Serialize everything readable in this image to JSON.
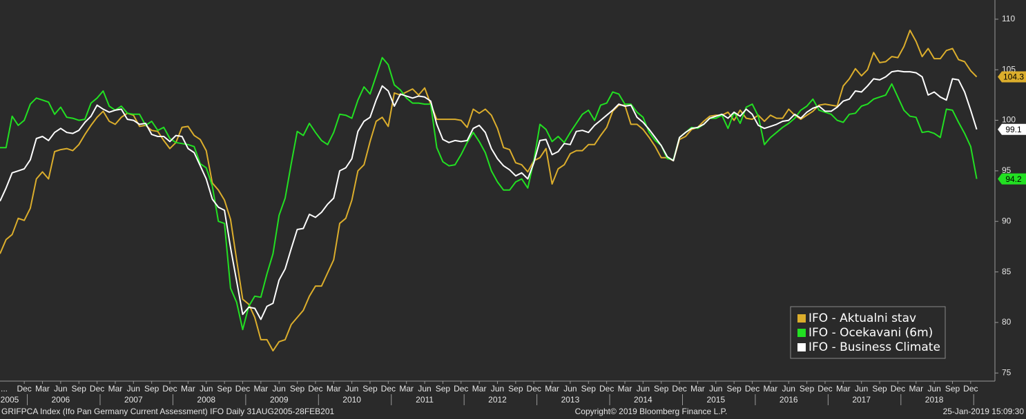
{
  "chart_data": {
    "type": "line",
    "x": [
      "2005-08",
      "2005-09",
      "2005-10",
      "2005-11",
      "2005-12",
      "2006-01",
      "2006-02",
      "2006-03",
      "2006-04",
      "2006-05",
      "2006-06",
      "2006-07",
      "2006-08",
      "2006-09",
      "2006-10",
      "2006-11",
      "2006-12",
      "2007-01",
      "2007-02",
      "2007-03",
      "2007-04",
      "2007-05",
      "2007-06",
      "2007-07",
      "2007-08",
      "2007-09",
      "2007-10",
      "2007-11",
      "2007-12",
      "2008-01",
      "2008-02",
      "2008-03",
      "2008-04",
      "2008-05",
      "2008-06",
      "2008-07",
      "2008-08",
      "2008-09",
      "2008-10",
      "2008-11",
      "2008-12",
      "2009-01",
      "2009-02",
      "2009-03",
      "2009-04",
      "2009-05",
      "2009-06",
      "2009-07",
      "2009-08",
      "2009-09",
      "2009-10",
      "2009-11",
      "2009-12",
      "2010-01",
      "2010-02",
      "2010-03",
      "2010-04",
      "2010-05",
      "2010-06",
      "2010-07",
      "2010-08",
      "2010-09",
      "2010-10",
      "2010-11",
      "2010-12",
      "2011-01",
      "2011-02",
      "2011-03",
      "2011-04",
      "2011-05",
      "2011-06",
      "2011-07",
      "2011-08",
      "2011-09",
      "2011-10",
      "2011-11",
      "2011-12",
      "2012-01",
      "2012-02",
      "2012-03",
      "2012-04",
      "2012-05",
      "2012-06",
      "2012-07",
      "2012-08",
      "2012-09",
      "2012-10",
      "2012-11",
      "2012-12",
      "2013-01",
      "2013-02",
      "2013-03",
      "2013-04",
      "2013-05",
      "2013-06",
      "2013-07",
      "2013-08",
      "2013-09",
      "2013-10",
      "2013-11",
      "2013-12",
      "2014-01",
      "2014-02",
      "2014-03",
      "2014-04",
      "2014-05",
      "2014-06",
      "2014-07",
      "2014-08",
      "2014-09",
      "2014-10",
      "2014-11",
      "2014-12",
      "2015-01",
      "2015-02",
      "2015-03",
      "2015-04",
      "2015-05",
      "2015-06",
      "2015-07",
      "2015-08",
      "2015-09",
      "2015-10",
      "2015-11",
      "2015-12",
      "2016-01",
      "2016-02",
      "2016-03",
      "2016-04",
      "2016-05",
      "2016-06",
      "2016-07",
      "2016-08",
      "2016-09",
      "2016-10",
      "2016-11",
      "2016-12",
      "2017-01",
      "2017-02",
      "2017-03",
      "2017-04",
      "2017-05",
      "2017-06",
      "2017-07",
      "2017-08",
      "2017-09",
      "2017-10",
      "2017-11",
      "2017-12",
      "2018-01",
      "2018-02",
      "2018-03",
      "2018-04",
      "2018-05",
      "2018-06",
      "2018-07",
      "2018-08",
      "2018-09",
      "2018-10",
      "2018-11",
      "2018-12",
      "2019-01"
    ],
    "series": [
      {
        "name": "IFO - Aktualni stav",
        "color": "#dcae2c",
        "values": [
          86.8,
          88.2,
          88.7,
          90.3,
          90.1,
          91.3,
          94.2,
          94.9,
          94.2,
          96.9,
          97.1,
          97.2,
          97.0,
          97.6,
          98.6,
          99.5,
          100.3,
          100.9,
          99.9,
          99.6,
          100.3,
          100.7,
          100.5,
          99.4,
          99.5,
          99.0,
          98.9,
          98.0,
          97.2,
          97.8,
          99.3,
          99.4,
          98.5,
          98.1,
          97.0,
          93.8,
          93.1,
          92.1,
          90.2,
          86.2,
          82.3,
          81.8,
          80.5,
          78.3,
          78.3,
          77.2,
          78.1,
          78.3,
          79.8,
          80.5,
          81.2,
          82.6,
          83.6,
          83.6,
          84.9,
          86.2,
          89.8,
          90.3,
          92.1,
          95.0,
          95.6,
          97.9,
          99.9,
          100.3,
          99.4,
          102.7,
          102.5,
          102.8,
          103.1,
          102.5,
          103.2,
          101.6,
          100.1,
          100.1,
          100.1,
          100.1,
          100.0,
          99.3,
          101.1,
          100.7,
          101.1,
          100.5,
          99.2,
          97.3,
          97.1,
          95.8,
          95.6,
          94.9,
          96.0,
          96.3,
          97.2,
          93.7,
          95.2,
          95.6,
          96.7,
          97.0,
          97.0,
          97.6,
          97.6,
          98.5,
          99.3,
          100.9,
          101.5,
          101.5,
          99.6,
          99.6,
          99.1,
          98.3,
          97.4,
          96.3,
          96.3,
          96.0,
          98.1,
          98.4,
          99.1,
          99.3,
          99.9,
          100.4,
          100.5,
          100.5,
          100.8,
          100.0,
          101.0,
          100.2,
          100.1,
          100.5,
          99.9,
          100.5,
          100.2,
          100.2,
          101.1,
          100.5,
          100.1,
          100.5,
          100.9,
          101.5,
          101.6,
          101.5,
          101.4,
          103.4,
          104.1,
          105.1,
          104.4,
          105.0,
          106.7,
          105.7,
          105.8,
          106.3,
          106.2,
          107.3,
          108.9,
          107.8,
          106.3,
          107.1,
          106.1,
          106.1,
          106.9,
          107.1,
          106.0,
          105.8,
          104.9,
          104.3
        ]
      },
      {
        "name": "IFO - Ocekavani (6m)",
        "color": "#22e022",
        "values": [
          97.3,
          97.3,
          100.4,
          99.5,
          100.0,
          101.6,
          102.2,
          102.0,
          101.8,
          100.6,
          101.3,
          100.3,
          100.2,
          100.0,
          100.1,
          101.7,
          102.2,
          102.9,
          101.4,
          101.0,
          101.4,
          100.7,
          100.6,
          100.6,
          99.5,
          99.9,
          99.0,
          99.3,
          98.2,
          97.8,
          97.7,
          97.6,
          97.4,
          95.7,
          95.3,
          93.5,
          90.0,
          89.8,
          83.4,
          82.0,
          79.3,
          81.6,
          82.6,
          82.5,
          84.8,
          86.8,
          90.6,
          92.3,
          95.7,
          98.9,
          98.5,
          99.7,
          98.8,
          98.0,
          97.6,
          98.8,
          100.6,
          100.5,
          100.2,
          102.0,
          103.3,
          102.6,
          104.4,
          106.2,
          105.5,
          103.5,
          103.0,
          102.2,
          101.7,
          101.7,
          101.6,
          101.6,
          97.3,
          95.9,
          95.5,
          95.6,
          96.6,
          97.8,
          98.8,
          97.9,
          96.8,
          95.0,
          93.9,
          93.1,
          93.1,
          93.9,
          94.2,
          93.3,
          96.0,
          99.6,
          99.1,
          97.9,
          98.4,
          97.8,
          98.8,
          99.7,
          100.6,
          101.0,
          100.0,
          101.5,
          101.7,
          102.8,
          102.6,
          101.6,
          101.6,
          100.8,
          100.3,
          98.8,
          98.0,
          97.5,
          96.2,
          96.1,
          98.3,
          98.8,
          99.3,
          99.2,
          99.6,
          100.2,
          100.2,
          100.5,
          99.2,
          100.8,
          99.7,
          101.3,
          101.6,
          100.4,
          97.6,
          98.3,
          98.8,
          99.3,
          99.7,
          100.2,
          101.0,
          101.4,
          102.1,
          101.0,
          100.8,
          100.6,
          100.0,
          99.8,
          100.6,
          100.7,
          101.4,
          101.6,
          102.1,
          102.3,
          102.5,
          103.6,
          102.3,
          101.0,
          100.4,
          100.3,
          98.8,
          98.9,
          98.7,
          98.3,
          101.1,
          101.0,
          99.8,
          98.7,
          97.4,
          94.2
        ]
      },
      {
        "name": "IFO - Business Climate",
        "color": "#ffffff",
        "values": [
          92.0,
          93.3,
          94.8,
          95.0,
          95.2,
          96.1,
          98.2,
          98.4,
          98.0,
          98.8,
          99.2,
          98.8,
          98.7,
          99.0,
          99.8,
          100.4,
          101.5,
          101.1,
          100.8,
          101.0,
          101.1,
          100.1,
          100.0,
          99.6,
          99.7,
          98.6,
          98.4,
          98.4,
          97.9,
          98.5,
          98.4,
          97.2,
          96.8,
          95.5,
          94.2,
          92.2,
          91.4,
          91.1,
          87.4,
          84.1,
          80.8,
          81.5,
          81.4,
          80.3,
          81.6,
          81.9,
          84.2,
          85.3,
          87.3,
          89.2,
          89.3,
          90.7,
          90.4,
          90.9,
          91.7,
          92.3,
          95.0,
          95.3,
          96.2,
          98.9,
          99.9,
          100.3,
          102.0,
          103.4,
          102.9,
          101.4,
          102.6,
          102.4,
          102.2,
          102.4,
          102.3,
          101.9,
          99.6,
          98.1,
          97.8,
          98.0,
          97.9,
          98.0,
          99.2,
          99.5,
          98.8,
          97.2,
          96.2,
          95.5,
          95.1,
          94.5,
          94.8,
          94.2,
          95.8,
          98.0,
          98.1,
          96.6,
          96.9,
          97.7,
          97.6,
          98.9,
          99.0,
          98.8,
          99.5,
          100.0,
          100.5,
          101.0,
          101.6,
          101.4,
          101.5,
          100.3,
          99.8,
          99.1,
          98.3,
          97.5,
          96.4,
          96.0,
          98.3,
          98.8,
          99.2,
          99.3,
          99.6,
          100.2,
          100.4,
          100.6,
          100.2,
          100.8,
          100.4,
          101.1,
          100.6,
          99.5,
          99.2,
          99.4,
          99.6,
          99.9,
          100.0,
          100.6,
          100.2,
          100.8,
          101.2,
          101.4,
          100.9,
          100.9,
          101.3,
          101.9,
          102.1,
          102.9,
          102.8,
          103.4,
          104.1,
          104.0,
          104.3,
          104.8,
          104.9,
          104.8,
          104.8,
          104.7,
          104.3,
          102.5,
          102.8,
          102.3,
          102.0,
          104.1,
          104.0,
          102.8,
          101.0,
          99.1
        ]
      }
    ],
    "xlim": [
      "2005-08",
      "2019-04"
    ],
    "ylim": [
      74.2,
      111.9
    ],
    "yticks": [
      75,
      80,
      85,
      90,
      95,
      100,
      105,
      110
    ],
    "xtick_lead": "...",
    "xticks": [
      {
        "value": "2005-12",
        "label": "Dec"
      },
      {
        "value": "2006-03",
        "label": "Mar"
      },
      {
        "value": "2006-06",
        "label": "Jun"
      },
      {
        "value": "2006-09",
        "label": "Sep"
      },
      {
        "value": "2006-12",
        "label": "Dec"
      },
      {
        "value": "2007-03",
        "label": "Mar"
      },
      {
        "value": "2007-06",
        "label": "Jun"
      },
      {
        "value": "2007-09",
        "label": "Sep"
      },
      {
        "value": "2007-12",
        "label": "Dec"
      },
      {
        "value": "2008-03",
        "label": "Mar"
      },
      {
        "value": "2008-06",
        "label": "Jun"
      },
      {
        "value": "2008-09",
        "label": "Sep"
      },
      {
        "value": "2008-12",
        "label": "Dec"
      },
      {
        "value": "2009-03",
        "label": "Mar"
      },
      {
        "value": "2009-06",
        "label": "Jun"
      },
      {
        "value": "2009-09",
        "label": "Sep"
      },
      {
        "value": "2009-12",
        "label": "Dec"
      },
      {
        "value": "2010-03",
        "label": "Mar"
      },
      {
        "value": "2010-06",
        "label": "Jun"
      },
      {
        "value": "2010-09",
        "label": "Sep"
      },
      {
        "value": "2010-12",
        "label": "Dec"
      },
      {
        "value": "2011-03",
        "label": "Mar"
      },
      {
        "value": "2011-06",
        "label": "Jun"
      },
      {
        "value": "2011-09",
        "label": "Sep"
      },
      {
        "value": "2011-12",
        "label": "Dec"
      },
      {
        "value": "2012-03",
        "label": "Mar"
      },
      {
        "value": "2012-06",
        "label": "Jun"
      },
      {
        "value": "2012-09",
        "label": "Sep"
      },
      {
        "value": "2012-12",
        "label": "Dec"
      },
      {
        "value": "2013-03",
        "label": "Mar"
      },
      {
        "value": "2013-06",
        "label": "Jun"
      },
      {
        "value": "2013-09",
        "label": "Sep"
      },
      {
        "value": "2013-12",
        "label": "Dec"
      },
      {
        "value": "2014-03",
        "label": "Mar"
      },
      {
        "value": "2014-06",
        "label": "Jun"
      },
      {
        "value": "2014-09",
        "label": "Sep"
      },
      {
        "value": "2014-12",
        "label": "Dec"
      },
      {
        "value": "2015-03",
        "label": "Mar"
      },
      {
        "value": "2015-06",
        "label": "Jun"
      },
      {
        "value": "2015-09",
        "label": "Sep"
      },
      {
        "value": "2015-12",
        "label": "Dec"
      },
      {
        "value": "2016-03",
        "label": "Mar"
      },
      {
        "value": "2016-06",
        "label": "Jun"
      },
      {
        "value": "2016-09",
        "label": "Sep"
      },
      {
        "value": "2016-12",
        "label": "Dec"
      },
      {
        "value": "2017-03",
        "label": "Mar"
      },
      {
        "value": "2017-06",
        "label": "Jun"
      },
      {
        "value": "2017-09",
        "label": "Sep"
      },
      {
        "value": "2017-12",
        "label": "Dec"
      },
      {
        "value": "2018-03",
        "label": "Mar"
      },
      {
        "value": "2018-06",
        "label": "Jun"
      },
      {
        "value": "2018-09",
        "label": "Sep"
      },
      {
        "value": "2018-12",
        "label": "Dec"
      }
    ],
    "xyears": [
      {
        "value": "2005-06",
        "label": "2005"
      },
      {
        "value": "2006-06",
        "label": "2006"
      },
      {
        "value": "2007-06",
        "label": "2007"
      },
      {
        "value": "2008-06",
        "label": "2008"
      },
      {
        "value": "2009-06",
        "label": "2009"
      },
      {
        "value": "2010-06",
        "label": "2010"
      },
      {
        "value": "2011-06",
        "label": "2011"
      },
      {
        "value": "2012-06",
        "label": "2012"
      },
      {
        "value": "2013-06",
        "label": "2013"
      },
      {
        "value": "2014-06",
        "label": "2014"
      },
      {
        "value": "2015-06",
        "label": "2015"
      },
      {
        "value": "2016-06",
        "label": "2016"
      },
      {
        "value": "2017-06",
        "label": "2017"
      },
      {
        "value": "2018-06",
        "label": "2018"
      }
    ],
    "legend": "lower right",
    "source": "GRIFPCA Index (Ifo Pan Germany Current Assessment) IFO  Daily 31AUG2005-28FEB201",
    "copyright": "Copyright© 2019 Bloomberg Finance L.P.",
    "timestamp": "25-Jan-2019 15:09:30"
  }
}
